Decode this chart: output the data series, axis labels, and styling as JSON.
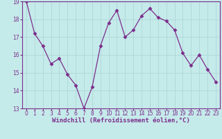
{
  "x": [
    0,
    1,
    2,
    3,
    4,
    5,
    6,
    7,
    8,
    9,
    10,
    11,
    12,
    13,
    14,
    15,
    16,
    17,
    18,
    19,
    20,
    21,
    22,
    23
  ],
  "y": [
    19.0,
    17.2,
    16.5,
    15.5,
    15.8,
    14.9,
    14.3,
    13.0,
    14.2,
    16.5,
    17.8,
    18.5,
    17.0,
    17.4,
    18.2,
    18.6,
    18.1,
    17.9,
    17.4,
    16.1,
    15.4,
    16.0,
    15.2,
    14.5
  ],
  "line_color": "#7b2d8b",
  "marker": "D",
  "marker_size": 2.5,
  "bg_color": "#c5eaea",
  "grid_color": "#aed8d8",
  "xlabel": "Windchill (Refroidissement éolien,°C)",
  "xlabel_color": "#7b2d8b",
  "tick_color": "#7b2d8b",
  "ylim": [
    13,
    19
  ],
  "xlim": [
    -0.5,
    23.5
  ],
  "yticks": [
    13,
    14,
    15,
    16,
    17,
    18,
    19
  ],
  "xticks": [
    0,
    1,
    2,
    3,
    4,
    5,
    6,
    7,
    8,
    9,
    10,
    11,
    12,
    13,
    14,
    15,
    16,
    17,
    18,
    19,
    20,
    21,
    22,
    23
  ],
  "xtick_labels": [
    "0",
    "1",
    "2",
    "3",
    "4",
    "5",
    "6",
    "7",
    "8",
    "9",
    "10",
    "11",
    "12",
    "13",
    "14",
    "15",
    "16",
    "17",
    "18",
    "19",
    "20",
    "21",
    "22",
    "23"
  ],
  "ytick_labels": [
    "13",
    "14",
    "15",
    "16",
    "17",
    "18",
    "19"
  ],
  "spine_color": "#7b2d8b",
  "label_fontsize": 6.5,
  "tick_fontsize": 5.5
}
